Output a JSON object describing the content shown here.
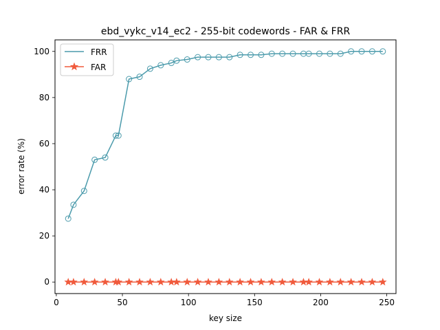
{
  "chart_data": {
    "type": "line",
    "title": "ebd_vykc_v14_ec2 - 255-bit codewords - FAR & FRR",
    "xlabel": "key size",
    "ylabel": "error rate (%)",
    "xlim": [
      -1,
      257
    ],
    "ylim": [
      -5,
      105
    ],
    "xticks": [
      0,
      50,
      100,
      150,
      200,
      250
    ],
    "yticks": [
      0,
      20,
      40,
      60,
      80,
      100
    ],
    "grid": false,
    "legend": "top-left",
    "x": [
      9,
      13,
      21,
      29,
      37,
      45,
      47,
      55,
      63,
      71,
      79,
      87,
      91,
      99,
      107,
      115,
      123,
      131,
      139,
      147,
      155,
      163,
      171,
      179,
      187,
      191,
      199,
      207,
      215,
      223,
      231,
      239,
      247
    ],
    "series": [
      {
        "name": "FRR",
        "color": "#4a9aab",
        "marker": "open-circle",
        "values": [
          27.5,
          33.5,
          39.5,
          53,
          54,
          63.5,
          63.5,
          88,
          89,
          92.5,
          94,
          95,
          96,
          96.5,
          97.5,
          97.5,
          97.5,
          97.5,
          98.5,
          98.5,
          98.5,
          99,
          99,
          99,
          99,
          99,
          99,
          99,
          99,
          100,
          100,
          100,
          100
        ]
      },
      {
        "name": "FAR",
        "color": "#f05a3c",
        "marker": "star",
        "values": [
          0,
          0,
          0,
          0,
          0,
          0,
          0,
          0,
          0,
          0,
          0,
          0,
          0,
          0,
          0,
          0,
          0,
          0,
          0,
          0,
          0,
          0,
          0,
          0,
          0,
          0,
          0,
          0,
          0,
          0,
          0,
          0,
          0
        ]
      }
    ]
  }
}
